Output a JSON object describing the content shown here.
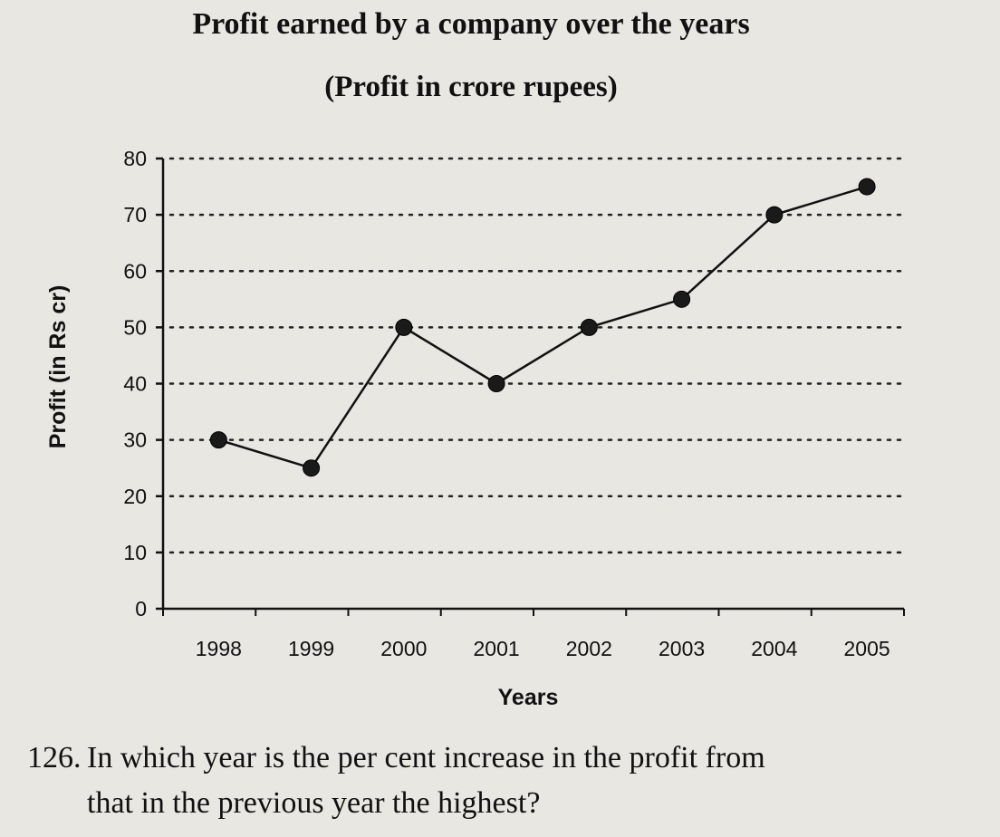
{
  "question": {
    "number": "126.",
    "text_line1": "In which year is the per cent increase in the profit from",
    "text_line2": "that in the previous year the highest?"
  },
  "colors": {
    "line": "#111111",
    "grid": "#222222",
    "background": "#e9e7e2"
  },
  "chart_data": {
    "type": "line",
    "title": "Profit earned by a company over the years",
    "subtitle": "(Profit in crore rupees)",
    "xlabel": "Years",
    "ylabel": "Profit (in Rs cr)",
    "categories": [
      "1998",
      "1999",
      "2000",
      "2001",
      "2002",
      "2003",
      "2004",
      "2005"
    ],
    "series": [
      {
        "values": [
          30,
          25,
          50,
          40,
          50,
          55,
          70,
          75
        ]
      }
    ],
    "ylim": [
      0,
      80
    ],
    "yticks": [
      0,
      10,
      20,
      30,
      40,
      50,
      60,
      70,
      80
    ],
    "grid": true,
    "legend": "none"
  }
}
